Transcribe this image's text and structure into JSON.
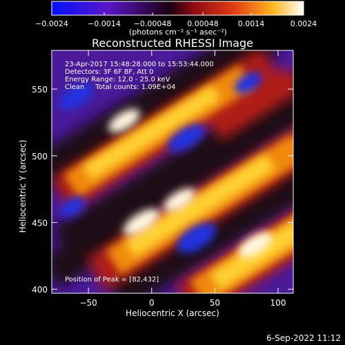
{
  "chart_data": {
    "type": "heatmap",
    "title": "Reconstructed RHESSI Image",
    "xlabel": "Heliocentric X (arcsec)",
    "ylabel": "Heliocentric Y (arcsec)",
    "x_range": [
      -79,
      112
    ],
    "y_range": [
      397,
      579
    ],
    "x_ticks": [
      -50,
      0,
      50,
      100
    ],
    "y_ticks": [
      400,
      450,
      500,
      550
    ],
    "grid": false,
    "colorbar": {
      "min": -0.0024,
      "max": 0.0024,
      "tick_values": [
        -0.0024,
        -0.0014,
        -0.00048,
        0.00048,
        0.0014,
        0.0024
      ],
      "tick_labels": [
        "-0.0024",
        "-0.0014",
        "-0.00048",
        "0.00048",
        "0.0014",
        "0.0024"
      ],
      "units_label": "(photons cm⁻² s⁻¹ asec⁻²)",
      "colors": [
        "#0010ff",
        "#5a16c8",
        "#1a0010",
        "#8a0a14",
        "#e03a10",
        "#ffb820",
        "#ffffff"
      ]
    },
    "annotations": [
      "23-Apr-2017 15:48:28.000 to 15:53:44.000",
      "Detectors: 3F 6F 8F, Att 0",
      "Energy Range: 12.0 - 25.0 keV",
      "Clean     Total counts: 1.09E+04"
    ],
    "peak_label": "Position of Peak = [82,432]",
    "peak_position": [
      82,
      432
    ],
    "footer_date": "6-Sep-2022 11:12"
  }
}
